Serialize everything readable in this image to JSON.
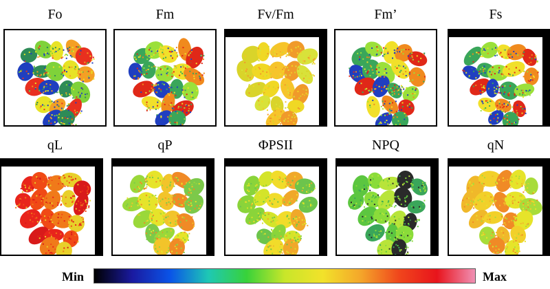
{
  "panels": [
    {
      "label": "Fo",
      "palette": [
        "#2e8b57",
        "#7fd23a",
        "#e8e326",
        "#f4a024",
        "#e8301f",
        "#1f3fbf"
      ],
      "frame": "plain"
    },
    {
      "label": "Fm",
      "palette": [
        "#3aa65a",
        "#9be03a",
        "#f1e02a",
        "#f08a1e",
        "#e02818",
        "#203fc0"
      ],
      "frame": "plain"
    },
    {
      "label": "Fv/Fm",
      "palette": [
        "#d9d42a",
        "#f0d824",
        "#f6c42a",
        "#f09a2a",
        "#d8e23a"
      ],
      "frame": "top-right"
    },
    {
      "label": "Fm’",
      "palette": [
        "#3aa65a",
        "#9be03a",
        "#f1e02a",
        "#f08a1e",
        "#e02818",
        "#203fc0"
      ],
      "frame": "plain"
    },
    {
      "label": "Fs",
      "palette": [
        "#3aa65a",
        "#9be03a",
        "#f1e02a",
        "#f08a1e",
        "#e02818",
        "#203fc0"
      ],
      "frame": "top-right"
    },
    {
      "label": "qL",
      "palette": [
        "#e8241c",
        "#f04a16",
        "#f07a1a",
        "#e8d02a",
        "#d81a1a"
      ],
      "frame": "top-right"
    },
    {
      "label": "qP",
      "palette": [
        "#9ad83a",
        "#e6e42a",
        "#f2c42a",
        "#f08a26",
        "#7cc94a"
      ],
      "frame": "top-right"
    },
    {
      "label": "ΦPSII",
      "palette": [
        "#8ad43a",
        "#d4e42a",
        "#f1dc2a",
        "#f0a82a",
        "#6cc44c"
      ],
      "frame": "top-right"
    },
    {
      "label": "NPQ",
      "palette": [
        "#5cc640",
        "#8adc3a",
        "#b8e43a",
        "#2a2a2a",
        "#3aa65a"
      ],
      "frame": "top-right"
    },
    {
      "label": "qN",
      "palette": [
        "#f0b82a",
        "#f2d02a",
        "#f08a26",
        "#e6e42a",
        "#a8dc3a"
      ],
      "frame": "top-right"
    }
  ],
  "colorbar": {
    "min_label": "Min",
    "max_label": "Max",
    "stops": [
      "#000000",
      "#1a1aa0",
      "#0a54e8",
      "#1ec8b4",
      "#38d23a",
      "#c8e62a",
      "#f2e22a",
      "#f4a62a",
      "#f0461c",
      "#e8141c",
      "#f090b4"
    ]
  }
}
